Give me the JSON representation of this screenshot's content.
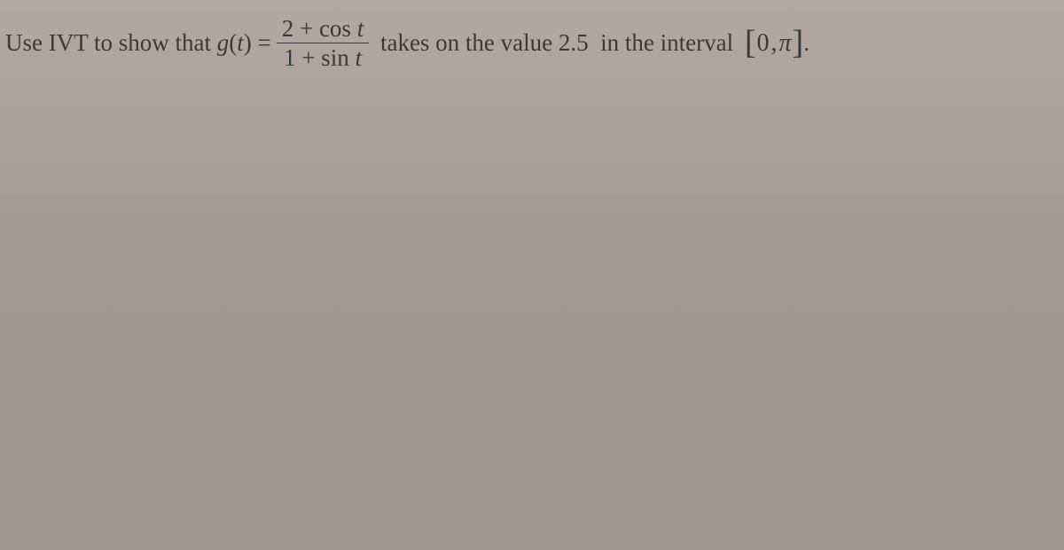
{
  "problem": {
    "prefix": "Use IVT to show that ",
    "func_lhs_g": "g",
    "func_lhs_open": "(",
    "func_lhs_var": "t",
    "func_lhs_close": ") =",
    "fraction": {
      "numerator_left": "2 + cos",
      "numerator_var": " t",
      "denominator_left": "1 + sin",
      "denominator_var": " t"
    },
    "middle": " takes on the value 2.5  in the interval ",
    "interval": {
      "left_bracket": "[",
      "a": "0",
      "comma": ", ",
      "b": "π",
      "right_bracket": "]"
    },
    "period": "."
  },
  "colors": {
    "text": "#3a3a3a",
    "background_top": "#b2aaa2",
    "background_bottom": "#9f968e"
  },
  "fonts": {
    "body_size_pt": 20,
    "fraction_size_pt": 20,
    "bracket_size_pt": 28
  }
}
